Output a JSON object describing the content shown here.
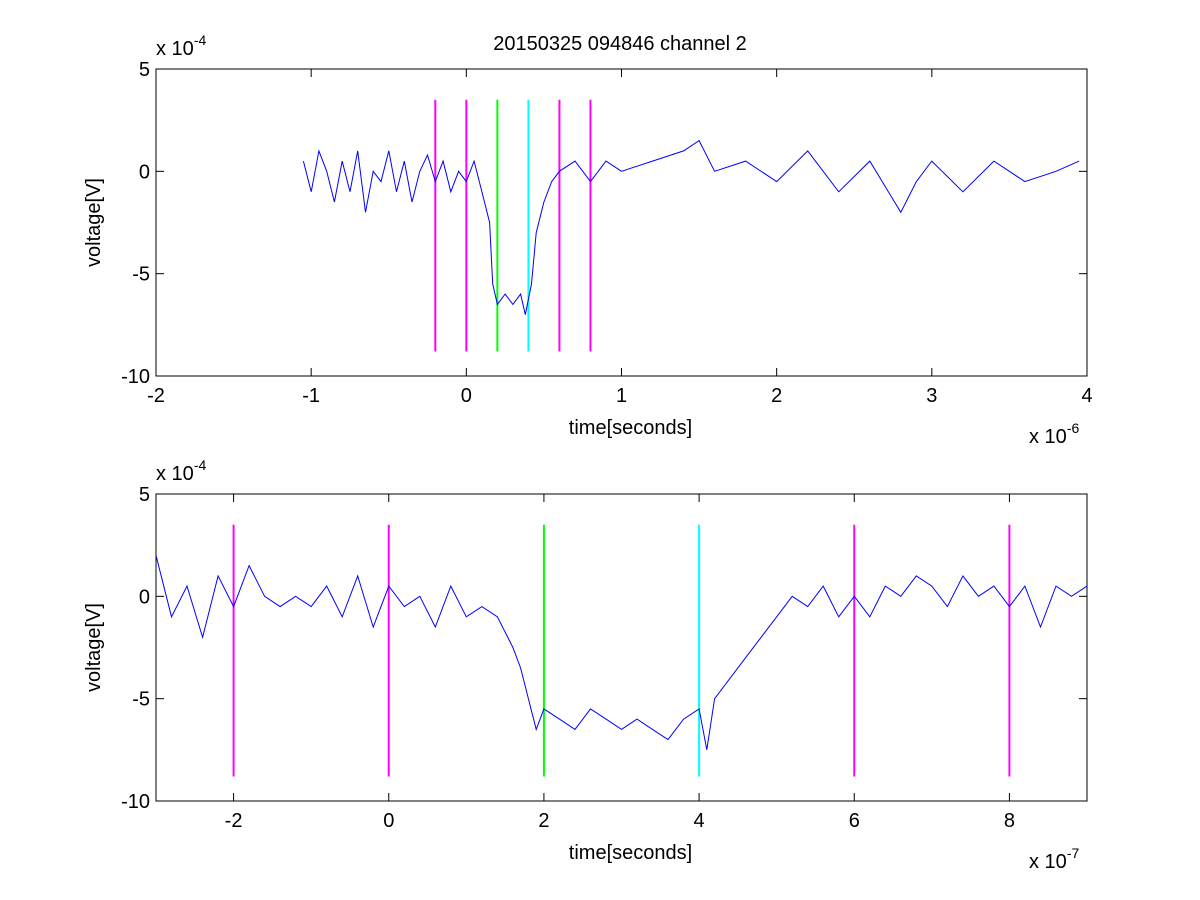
{
  "figure": {
    "title": "20150325 094846 channel 2",
    "line_color": "#0000ff",
    "marker_colors": {
      "magenta": "#ff00ff",
      "green": "#00ff00",
      "cyan": "#00ffff"
    }
  },
  "chart_data": [
    {
      "type": "line",
      "title": "20150325 094846 channel 2",
      "xlabel": "time[seconds]",
      "ylabel": "voltage[V]",
      "x_multiplier_label": {
        "base": "x 10",
        "exponent": "-6"
      },
      "y_multiplier_label": {
        "base": "x 10",
        "exponent": "-4"
      },
      "xlim": [
        -2,
        4
      ],
      "ylim": [
        -10,
        5
      ],
      "xticks": [
        -2,
        -1,
        0,
        1,
        2,
        3,
        4
      ],
      "xtick_labels": [
        "-2",
        "-1",
        "0",
        "1",
        "2",
        "3",
        "4"
      ],
      "yticks": [
        5,
        0,
        -5,
        -10
      ],
      "ytick_labels": [
        "5",
        "0",
        "-5",
        "-10"
      ],
      "grid": false,
      "series": [
        {
          "color": "#0000ff",
          "x": [
            -1.05,
            -1.0,
            -0.95,
            -0.9,
            -0.85,
            -0.8,
            -0.75,
            -0.7,
            -0.65,
            -0.6,
            -0.55,
            -0.5,
            -0.45,
            -0.4,
            -0.35,
            -0.3,
            -0.25,
            -0.2,
            -0.15,
            -0.1,
            -0.05,
            0.0,
            0.05,
            0.1,
            0.15,
            0.17,
            0.2,
            0.25,
            0.3,
            0.35,
            0.38,
            0.42,
            0.45,
            0.5,
            0.55,
            0.6,
            0.7,
            0.8,
            0.9,
            1.0,
            1.2,
            1.4,
            1.5,
            1.6,
            1.8,
            2.0,
            2.2,
            2.4,
            2.6,
            2.8,
            2.9,
            3.0,
            3.2,
            3.4,
            3.6,
            3.8,
            3.95
          ],
          "y": [
            0.5,
            -1.0,
            1.0,
            0.0,
            -1.5,
            0.5,
            -1.0,
            1.0,
            -2.0,
            0.0,
            -0.5,
            1.0,
            -1.0,
            0.5,
            -1.5,
            0.0,
            0.8,
            -0.5,
            0.5,
            -1.0,
            0.0,
            -0.5,
            0.5,
            -1.0,
            -2.5,
            -5.5,
            -6.5,
            -6.0,
            -6.5,
            -6.0,
            -7.0,
            -5.5,
            -3.0,
            -1.5,
            -0.5,
            0.0,
            0.5,
            -0.5,
            0.5,
            0.0,
            0.5,
            1.0,
            1.5,
            0.0,
            0.5,
            -0.5,
            1.0,
            -1.0,
            0.5,
            -2.0,
            -0.5,
            0.5,
            -1.0,
            0.5,
            -0.5,
            0.0,
            0.5
          ]
        }
      ],
      "vlines": [
        {
          "x": -0.2,
          "color": "magenta"
        },
        {
          "x": 0.0,
          "color": "magenta"
        },
        {
          "x": 0.2,
          "color": "green"
        },
        {
          "x": 0.4,
          "color": "cyan"
        },
        {
          "x": 0.6,
          "color": "magenta"
        },
        {
          "x": 0.8,
          "color": "magenta"
        }
      ],
      "vline_range": [
        -8.8,
        3.5
      ]
    },
    {
      "type": "line",
      "xlabel": "time[seconds]",
      "ylabel": "voltage[V]",
      "x_multiplier_label": {
        "base": "x 10",
        "exponent": "-7"
      },
      "y_multiplier_label": {
        "base": "x 10",
        "exponent": "-4"
      },
      "xlim": [
        -3,
        9
      ],
      "ylim": [
        -10,
        5
      ],
      "xticks": [
        -2,
        0,
        2,
        4,
        6,
        8
      ],
      "xtick_labels": [
        "-2",
        "0",
        "2",
        "4",
        "6",
        "8"
      ],
      "yticks": [
        5,
        0,
        -5,
        -10
      ],
      "ytick_labels": [
        "5",
        "0",
        "-5",
        "-10"
      ],
      "grid": false,
      "series": [
        {
          "color": "#0000ff",
          "x": [
            -3.0,
            -2.8,
            -2.6,
            -2.4,
            -2.2,
            -2.0,
            -1.8,
            -1.6,
            -1.4,
            -1.2,
            -1.0,
            -0.8,
            -0.6,
            -0.4,
            -0.2,
            0.0,
            0.2,
            0.4,
            0.6,
            0.8,
            1.0,
            1.2,
            1.4,
            1.6,
            1.7,
            1.8,
            1.9,
            2.0,
            2.2,
            2.4,
            2.6,
            2.8,
            3.0,
            3.2,
            3.4,
            3.6,
            3.8,
            4.0,
            4.1,
            4.2,
            4.4,
            4.6,
            4.8,
            5.0,
            5.2,
            5.4,
            5.6,
            5.8,
            6.0,
            6.2,
            6.4,
            6.6,
            6.8,
            7.0,
            7.2,
            7.4,
            7.6,
            7.8,
            8.0,
            8.2,
            8.4,
            8.6,
            8.8,
            9.0
          ],
          "y": [
            2.0,
            -1.0,
            0.5,
            -2.0,
            1.0,
            -0.5,
            1.5,
            0.0,
            -0.5,
            0.0,
            -0.5,
            0.5,
            -1.0,
            1.0,
            -1.5,
            0.5,
            -0.5,
            0.0,
            -1.5,
            0.5,
            -1.0,
            -0.5,
            -1.0,
            -2.5,
            -3.5,
            -5.0,
            -6.5,
            -5.5,
            -6.0,
            -6.5,
            -5.5,
            -6.0,
            -6.5,
            -6.0,
            -6.5,
            -7.0,
            -6.0,
            -5.5,
            -7.5,
            -5.0,
            -4.0,
            -3.0,
            -2.0,
            -1.0,
            0.0,
            -0.5,
            0.5,
            -1.0,
            0.0,
            -1.0,
            0.5,
            0.0,
            1.0,
            0.5,
            -0.5,
            1.0,
            0.0,
            0.5,
            -0.5,
            0.5,
            -1.5,
            0.5,
            0.0,
            0.5
          ]
        }
      ],
      "vlines": [
        {
          "x": -2,
          "color": "magenta"
        },
        {
          "x": 0,
          "color": "magenta"
        },
        {
          "x": 2,
          "color": "green"
        },
        {
          "x": 4,
          "color": "cyan"
        },
        {
          "x": 6,
          "color": "magenta"
        },
        {
          "x": 8,
          "color": "magenta"
        }
      ],
      "vline_range": [
        -8.8,
        3.5
      ]
    }
  ]
}
